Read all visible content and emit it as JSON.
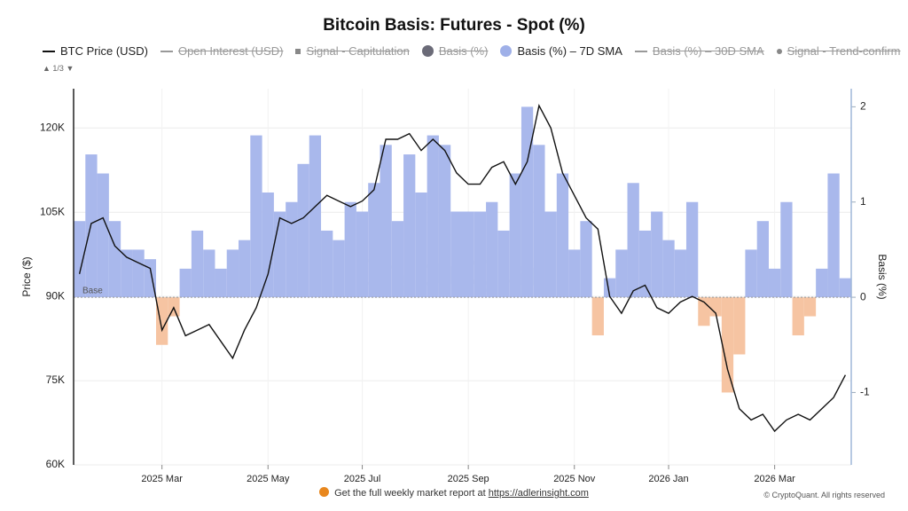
{
  "chart_data": {
    "type": "combo",
    "title": "Bitcoin Basis: Futures - Spot (%)",
    "legend": [
      {
        "name": "BTC Price (USD)",
        "symbol": "line",
        "color": "#111111",
        "hidden": false
      },
      {
        "name": "Open Interest (USD)",
        "symbol": "line",
        "color": "#999999",
        "hidden": true
      },
      {
        "name": "Signal - Capitulation",
        "symbol": "square",
        "color": "#888888",
        "hidden": true
      },
      {
        "name": "Basis (%)",
        "symbol": "circle",
        "color": "#6b6b78",
        "hidden": true
      },
      {
        "name": "Basis (%) – 7D SMA",
        "symbol": "circle",
        "color": "#9fb0e8",
        "hidden": false
      },
      {
        "name": "Basis (%) – 30D SMA",
        "symbol": "line",
        "color": "#999999",
        "hidden": true
      },
      {
        "name": "Signal - Trend-confirm",
        "symbol": "dot",
        "color": "#888888",
        "hidden": true
      }
    ],
    "legend_page": "1/3",
    "ylabel": "Price ($)",
    "y2label": "Basis (%)",
    "baseline_label": "Base",
    "watermark": "CryptoQuant",
    "footer_text": "Get the full weekly market report at",
    "footer_link": "https://adlerinsight.com",
    "copyright": "© CryptoQuant. All rights reserved",
    "categories": [
      null,
      null,
      null,
      null,
      null,
      null,
      null,
      "2025 Mar",
      null,
      null,
      null,
      null,
      null,
      null,
      null,
      null,
      "2025 May",
      null,
      null,
      null,
      null,
      null,
      null,
      null,
      "2025 Jul",
      null,
      null,
      null,
      null,
      null,
      null,
      null,
      null,
      "2025 Sep",
      null,
      null,
      null,
      null,
      null,
      null,
      null,
      null,
      "2025 Nov",
      null,
      null,
      null,
      null,
      null,
      null,
      null,
      "2026 Jan",
      null,
      null,
      null,
      null,
      null,
      null,
      null,
      null,
      "2026 Mar",
      null,
      null,
      null,
      null,
      null,
      null
    ],
    "series": [
      {
        "name": "BTC Price (USD)",
        "color": "#111111",
        "axis": "y",
        "values": [
          94000,
          103000,
          104000,
          99000,
          97000,
          96000,
          95000,
          84000,
          88000,
          83000,
          84000,
          85000,
          82000,
          79000,
          84000,
          88000,
          94000,
          104000,
          103000,
          104000,
          106000,
          108000,
          107000,
          106000,
          107000,
          109000,
          118000,
          118000,
          119000,
          116000,
          118000,
          116000,
          112000,
          110000,
          110000,
          113000,
          114000,
          110000,
          114000,
          124000,
          120000,
          112000,
          108000,
          104000,
          102000,
          90000,
          87000,
          91000,
          92000,
          88000,
          87000,
          89000,
          90000,
          89000,
          87000,
          77000,
          70000,
          68000,
          69000,
          66000,
          68000,
          69000,
          68000,
          70000,
          72000,
          76000
        ]
      },
      {
        "name": "Basis (%) – 7D SMA",
        "color": "#a9b8ec",
        "negative_color": "#f6c4a2",
        "axis": "y2",
        "values": [
          0.8,
          1.5,
          1.3,
          0.8,
          0.5,
          0.5,
          0.4,
          -0.5,
          -0.2,
          0.3,
          0.7,
          0.5,
          0.3,
          0.5,
          0.6,
          1.7,
          1.1,
          0.9,
          1.0,
          1.4,
          1.7,
          0.7,
          0.6,
          1.0,
          0.9,
          1.2,
          1.6,
          0.8,
          1.5,
          1.1,
          1.7,
          1.6,
          0.9,
          0.9,
          0.9,
          1.0,
          0.7,
          1.3,
          2.0,
          1.6,
          0.9,
          1.3,
          0.5,
          0.8,
          -0.4,
          0.2,
          0.5,
          1.2,
          0.7,
          0.9,
          0.6,
          0.5,
          1.0,
          -0.3,
          -0.2,
          -1.0,
          -0.6,
          0.5,
          0.8,
          0.3,
          1.0,
          -0.4,
          -0.2,
          0.3,
          1.3,
          0.2
        ]
      }
    ],
    "ylim": [
      60000,
      127000
    ],
    "yticks": [
      {
        "value": 60000,
        "label": "60K"
      },
      {
        "value": 75000,
        "label": "75K"
      },
      {
        "value": 90000,
        "label": "90K"
      },
      {
        "value": 105000,
        "label": "105K"
      },
      {
        "value": 120000,
        "label": "120K"
      }
    ],
    "y2lim": [
      -1.76,
      2.19
    ],
    "y2ticks": [
      -1,
      0,
      1,
      2
    ],
    "grid": true
  }
}
